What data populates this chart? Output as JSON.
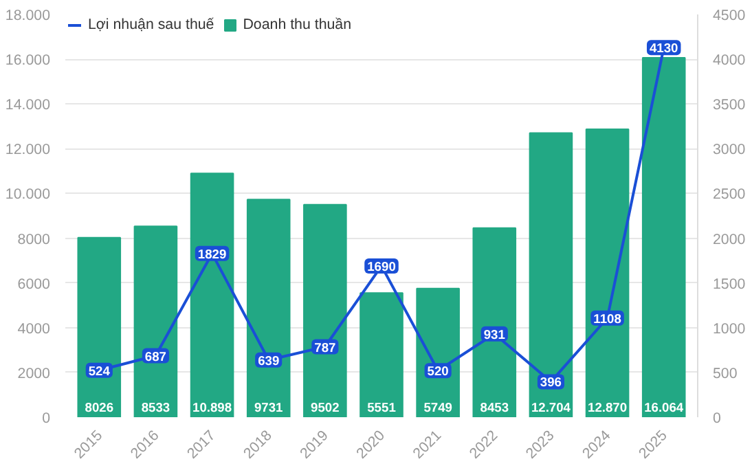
{
  "chart_data": {
    "type": "bar",
    "categories": [
      "2015",
      "2016",
      "2017",
      "2018",
      "2019",
      "2020",
      "2021",
      "2022",
      "2023",
      "2024",
      "2025"
    ],
    "series": [
      {
        "name": "Lợi nhuận sau thuế",
        "type": "line",
        "axis": "y2",
        "marker": "square",
        "color": "#1a4fd6",
        "values": [
          524,
          687,
          1829,
          639,
          787,
          1690,
          520,
          931,
          396,
          1108,
          4130
        ],
        "value_labels": [
          "524",
          "687",
          "1829",
          "639",
          "787",
          "1690",
          "520",
          "931",
          "396",
          "1108",
          "4130"
        ]
      },
      {
        "name": "Doanh thu thuần",
        "color": "#22a884",
        "values": [
          8026,
          8533,
          10898,
          9731,
          9502,
          5551,
          5749,
          8453,
          12704,
          12870,
          16064
        ],
        "value_labels": [
          "8026",
          "8533",
          "10.898",
          "9731",
          "9502",
          "5551",
          "5749",
          "8453",
          "12.704",
          "12.870",
          "16.064"
        ]
      }
    ],
    "ylim": [
      0,
      18000
    ],
    "yticks": [
      0,
      2000,
      4000,
      6000,
      8000,
      {
        "value": 10000,
        "label": "10.000"
      },
      {
        "value": 12000,
        "label": "12.000"
      },
      {
        "value": 14000,
        "label": "14.000"
      },
      {
        "value": 16000,
        "label": "16.000"
      },
      {
        "value": 18000,
        "label": "18.000"
      }
    ],
    "y2lim": [
      0,
      4500
    ],
    "y2ticks": [
      0,
      500,
      1000,
      1500,
      2000,
      2500,
      3000,
      3500,
      4000,
      4500
    ],
    "grid": "y",
    "legend": "top left",
    "line_style": "solid"
  }
}
